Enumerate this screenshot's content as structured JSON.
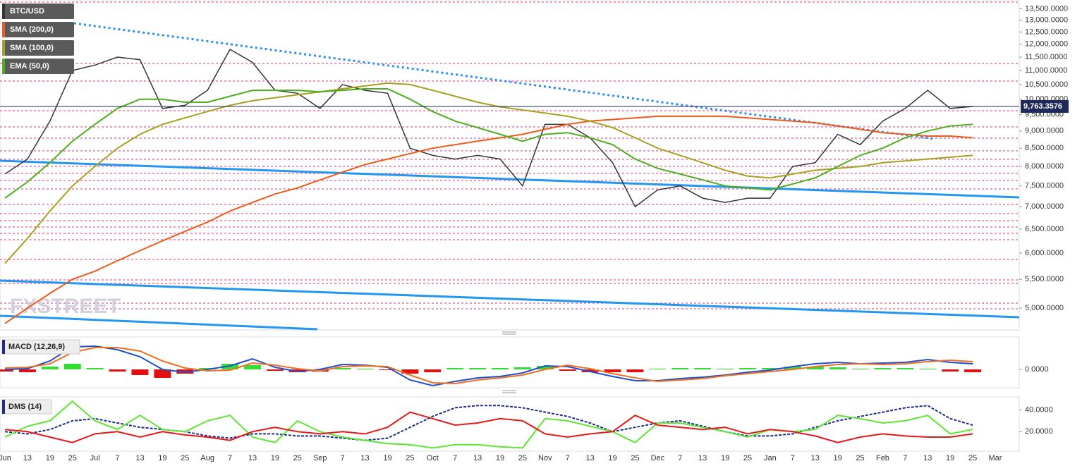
{
  "chart_data": [
    {
      "type": "line",
      "categories": [
        "Jun",
        "13",
        "19",
        "25",
        "Jul",
        "7",
        "13",
        "19",
        "25",
        "Aug",
        "7",
        "13",
        "19",
        "25",
        "Sep",
        "7",
        "13",
        "19",
        "25",
        "Oct",
        "7",
        "13",
        "19",
        "25",
        "Nov",
        "7",
        "13",
        "19",
        "25",
        "Dec",
        "7",
        "13",
        "19",
        "25",
        "Jan",
        "7",
        "13",
        "19",
        "25",
        "Feb",
        "7",
        "13",
        "19",
        "25",
        "Mar"
      ],
      "log_scale": true,
      "ylim": [
        4650,
        13900
      ],
      "yticks": [
        {
          "value": 13500,
          "label": "13,500.0000"
        },
        {
          "value": 13000,
          "label": "13,000.0000"
        },
        {
          "value": 12500,
          "label": "12,500.0000"
        },
        {
          "value": 12000,
          "label": "12,000.0000"
        },
        {
          "value": 11500,
          "label": "11,500.0000"
        },
        {
          "value": 11000,
          "label": "11,000.0000"
        },
        {
          "value": 10500,
          "label": "10,500.0000"
        },
        {
          "value": 10000,
          "label": "10,000.0000"
        },
        {
          "value": 9500,
          "label": "9,500.0000"
        },
        {
          "value": 9000,
          "label": "9,000.0000"
        },
        {
          "value": 8500,
          "label": "8,500.0000"
        },
        {
          "value": 8000,
          "label": "8,000.0000"
        },
        {
          "value": 7500,
          "label": "7,500.0000"
        },
        {
          "value": 7000,
          "label": "7,000.0000"
        },
        {
          "value": 6500,
          "label": "6,500.0000"
        },
        {
          "value": 6000,
          "label": "6,000.0000"
        },
        {
          "value": 5500,
          "label": "5,500.0000"
        },
        {
          "value": 5000,
          "label": "5,000.0000"
        }
      ],
      "series": [
        {
          "name": "BTC/USD",
          "color": "#333333",
          "values": [
            7800,
            8200,
            9300,
            11000,
            11200,
            11500,
            11400,
            9700,
            9800,
            10300,
            11800,
            11300,
            10300,
            10200,
            9700,
            10500,
            10300,
            10200,
            8500,
            8300,
            8200,
            8300,
            8200,
            7500,
            9200,
            9200,
            8800,
            8100,
            7000,
            7400,
            7500,
            7200,
            7100,
            7200,
            7200,
            8000,
            8100,
            8900,
            8600,
            9300,
            9700,
            10300,
            9700,
            9763.3576,
            null
          ]
        },
        {
          "name": "SMA (200,0)",
          "color": "#f05a1a",
          "values": [
            4750,
            5000,
            5250,
            5500,
            5650,
            5850,
            6050,
            6250,
            6450,
            6650,
            6900,
            7100,
            7300,
            7450,
            7650,
            7850,
            8050,
            8200,
            8350,
            8500,
            8600,
            8700,
            8800,
            8900,
            9050,
            9200,
            9300,
            9350,
            9400,
            9450,
            9450,
            9450,
            9450,
            9400,
            9350,
            9300,
            9250,
            9150,
            9050,
            8950,
            8900,
            8850,
            8850,
            8800,
            null
          ]
        },
        {
          "name": "SMA (100,0)",
          "color": "#a8a020",
          "values": [
            5800,
            6300,
            6900,
            7500,
            8000,
            8500,
            8900,
            9200,
            9400,
            9600,
            9800,
            9950,
            10050,
            10150,
            10250,
            10350,
            10450,
            10550,
            10500,
            10300,
            10100,
            9900,
            9750,
            9650,
            9550,
            9450,
            9300,
            9100,
            8800,
            8500,
            8300,
            8100,
            7900,
            7750,
            7700,
            7800,
            7900,
            7950,
            8000,
            8100,
            8150,
            8200,
            8250,
            8300,
            null
          ]
        },
        {
          "name": "EMA (50,0)",
          "color": "#4caf20",
          "values": [
            7200,
            7600,
            8100,
            8700,
            9200,
            9700,
            10000,
            10000,
            9900,
            9900,
            10100,
            10300,
            10300,
            10300,
            10250,
            10300,
            10350,
            10350,
            10000,
            9600,
            9300,
            9100,
            8900,
            8700,
            8900,
            8950,
            8800,
            8600,
            8200,
            7950,
            7800,
            7650,
            7500,
            7450,
            7400,
            7550,
            7700,
            8000,
            8300,
            8500,
            8800,
            9000,
            9150,
            9200,
            null
          ]
        }
      ],
      "last_price": {
        "value": 9763.3576,
        "label": "9,763.3576"
      },
      "watermark": "FXSTREET"
    },
    {
      "type": "line",
      "title": "MACD (12,26,9)",
      "ylim": [
        -260,
        460
      ],
      "yticks": [
        {
          "value": 0,
          "label": "0.0000"
        }
      ],
      "series": [
        {
          "type": "bar",
          "color": "#33dd33",
          "negative_color": "#e01010",
          "values": [
            -30,
            -40,
            40,
            80,
            20,
            -30,
            -80,
            -120,
            -60,
            20,
            80,
            60,
            -20,
            -40,
            -30,
            20,
            10,
            -10,
            -60,
            -40,
            20,
            20,
            20,
            30,
            50,
            -20,
            -40,
            -40,
            -40,
            10,
            20,
            20,
            10,
            20,
            20,
            40,
            40,
            30,
            10,
            20,
            20,
            10,
            -30,
            -40,
            null
          ]
        },
        {
          "color": "#2050d0",
          "values": [
            0,
            10,
            120,
            320,
            330,
            280,
            180,
            0,
            -40,
            0,
            50,
            150,
            30,
            -30,
            0,
            70,
            60,
            30,
            -150,
            -230,
            -170,
            -120,
            -100,
            -50,
            50,
            40,
            -30,
            -100,
            -160,
            -160,
            -130,
            -110,
            -80,
            -40,
            -10,
            40,
            80,
            100,
            80,
            90,
            100,
            140,
            100,
            80,
            null
          ]
        },
        {
          "color": "#f07020",
          "values": [
            20,
            30,
            80,
            240,
            310,
            310,
            260,
            120,
            20,
            -20,
            -10,
            90,
            60,
            10,
            -20,
            40,
            50,
            40,
            -80,
            -190,
            -200,
            -150,
            -120,
            -80,
            0,
            60,
            10,
            -60,
            -120,
            -170,
            -150,
            -130,
            -90,
            -60,
            -30,
            0,
            40,
            70,
            80,
            70,
            80,
            110,
            130,
            110,
            null
          ]
        }
      ]
    },
    {
      "type": "line",
      "title": "DMS (14)",
      "ylim": [
        2,
        52
      ],
      "yticks": [
        {
          "value": 40,
          "label": "40.0000"
        },
        {
          "value": 20,
          "label": "20.0000"
        }
      ],
      "series": [
        {
          "color": "#1d2b8c",
          "dashed": true,
          "values": [
            20,
            18,
            22,
            30,
            32,
            28,
            24,
            22,
            20,
            16,
            14,
            18,
            18,
            16,
            16,
            14,
            12,
            14,
            24,
            34,
            42,
            44,
            44,
            42,
            38,
            34,
            28,
            20,
            24,
            28,
            30,
            25,
            20,
            16,
            16,
            18,
            24,
            30,
            34,
            38,
            42,
            44,
            32,
            26,
            null
          ]
        },
        {
          "color": "#5ee632",
          "values": [
            15,
            25,
            30,
            48,
            30,
            22,
            35,
            22,
            20,
            30,
            35,
            15,
            10,
            30,
            20,
            15,
            12,
            9,
            8,
            5,
            8,
            8,
            6,
            5,
            32,
            30,
            25,
            20,
            10,
            28,
            28,
            24,
            20,
            15,
            22,
            20,
            22,
            35,
            32,
            28,
            30,
            35,
            18,
            22,
            null
          ]
        },
        {
          "color": "#e61919",
          "values": [
            22,
            20,
            15,
            10,
            18,
            20,
            15,
            20,
            17,
            15,
            12,
            20,
            24,
            20,
            18,
            20,
            18,
            24,
            38,
            32,
            26,
            28,
            32,
            30,
            18,
            15,
            18,
            20,
            35,
            26,
            24,
            22,
            24,
            18,
            22,
            20,
            16,
            10,
            15,
            18,
            16,
            15,
            15,
            18,
            null
          ]
        }
      ]
    }
  ]
}
